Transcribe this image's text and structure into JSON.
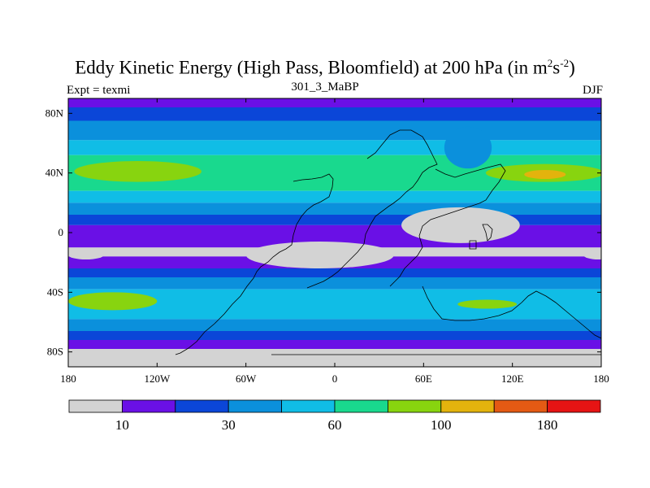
{
  "chart_data": {
    "type": "heatmap",
    "title": "Eddy Kinetic Energy (High Pass, Bloomfield) at 200 hPa (in m",
    "title_unit_sup1": "2",
    "title_unit_mid": "s",
    "title_unit_sup2": "-2",
    "title_close": ")",
    "subtitle": "301_3_MaBP",
    "left_label": "Expt = texmi",
    "right_label": "DJF",
    "x_range": [
      -180,
      180
    ],
    "y_range": [
      -90,
      90
    ],
    "x_ticks": [
      {
        "value": -180,
        "label": "180"
      },
      {
        "value": -120,
        "label": "120W"
      },
      {
        "value": -60,
        "label": "60W"
      },
      {
        "value": 0,
        "label": "0"
      },
      {
        "value": 60,
        "label": "60E"
      },
      {
        "value": 120,
        "label": "120E"
      },
      {
        "value": 180,
        "label": "180"
      }
    ],
    "y_ticks": [
      {
        "value": 80,
        "label": "80N"
      },
      {
        "value": 40,
        "label": "40N"
      },
      {
        "value": 0,
        "label": "0"
      },
      {
        "value": -40,
        "label": "40S"
      },
      {
        "value": -80,
        "label": "80S"
      }
    ],
    "colorbar": {
      "colors": [
        "#d3d3d3",
        "#6a10e6",
        "#0b46d8",
        "#0b90dc",
        "#10bde6",
        "#19d98e",
        "#88d40f",
        "#e3b30d",
        "#e45a14",
        "#e61414"
      ],
      "labels": [
        {
          "index": 1,
          "text": "10"
        },
        {
          "index": 3,
          "text": "30"
        },
        {
          "index": 5,
          "text": "60"
        },
        {
          "index": 7,
          "text": "100"
        },
        {
          "index": 9,
          "text": "180"
        }
      ]
    },
    "zonal_bands": [
      {
        "from": 90,
        "to": 84,
        "level": 1
      },
      {
        "from": 84,
        "to": 75,
        "level": 2
      },
      {
        "from": 75,
        "to": 62,
        "level": 3
      },
      {
        "from": 62,
        "to": 52,
        "level": 4
      },
      {
        "from": 52,
        "to": 28,
        "level": 5
      },
      {
        "from": 28,
        "to": 20,
        "level": 4
      },
      {
        "from": 20,
        "to": 12,
        "level": 3
      },
      {
        "from": 12,
        "to": 5,
        "level": 2
      },
      {
        "from": 5,
        "to": -10,
        "level": 1
      },
      {
        "from": -10,
        "to": -16,
        "level": 0
      },
      {
        "from": -16,
        "to": -24,
        "level": 1
      },
      {
        "from": -24,
        "to": -30,
        "level": 2
      },
      {
        "from": -30,
        "to": -38,
        "level": 3
      },
      {
        "from": -38,
        "to": -58,
        "level": 4
      },
      {
        "from": -58,
        "to": -66,
        "level": 3
      },
      {
        "from": -66,
        "to": -72,
        "level": 2
      },
      {
        "from": -72,
        "to": -78,
        "level": 1
      },
      {
        "from": -78,
        "to": -90,
        "level": 0
      }
    ],
    "features": [
      {
        "name": "nh-jet-atlantic-pacific",
        "level": 6,
        "lon": -133,
        "lat": 41,
        "rlon": 43,
        "rlat": 7
      },
      {
        "name": "nh-jet-pacific-east",
        "level": 6,
        "lon": 142,
        "lat": 40,
        "rlon": 40,
        "rlat": 6
      },
      {
        "name": "nh-jet-pacific-core",
        "level": 7,
        "lon": 142,
        "lat": 39,
        "rlon": 14,
        "rlat": 3
      },
      {
        "name": "sh-jet-atlantic",
        "level": 6,
        "lon": -150,
        "lat": -46,
        "rlon": 30,
        "rlat": 6
      },
      {
        "name": "sh-jet-indian",
        "level": 6,
        "lon": 103,
        "lat": -48,
        "rlon": 20,
        "rlat": 3
      },
      {
        "name": "tibet-dip",
        "level": 3,
        "lon": 90,
        "lat": 57,
        "rlon": 16,
        "rlat": 14
      },
      {
        "name": "tropics-low-africa",
        "level": 0,
        "lon": -10,
        "lat": -15,
        "rlon": 50,
        "rlat": 9
      },
      {
        "name": "tropics-low-indopacific",
        "level": 0,
        "lon": 85,
        "lat": 5,
        "rlon": 40,
        "rlat": 12
      },
      {
        "name": "tropics-low-west",
        "level": 0,
        "lon": -168,
        "lat": -15,
        "rlon": 12,
        "rlat": 3
      },
      {
        "name": "tropics-low-east",
        "level": 0,
        "lon": 178,
        "lat": -15,
        "rlon": 10,
        "rlat": 3
      }
    ]
  }
}
